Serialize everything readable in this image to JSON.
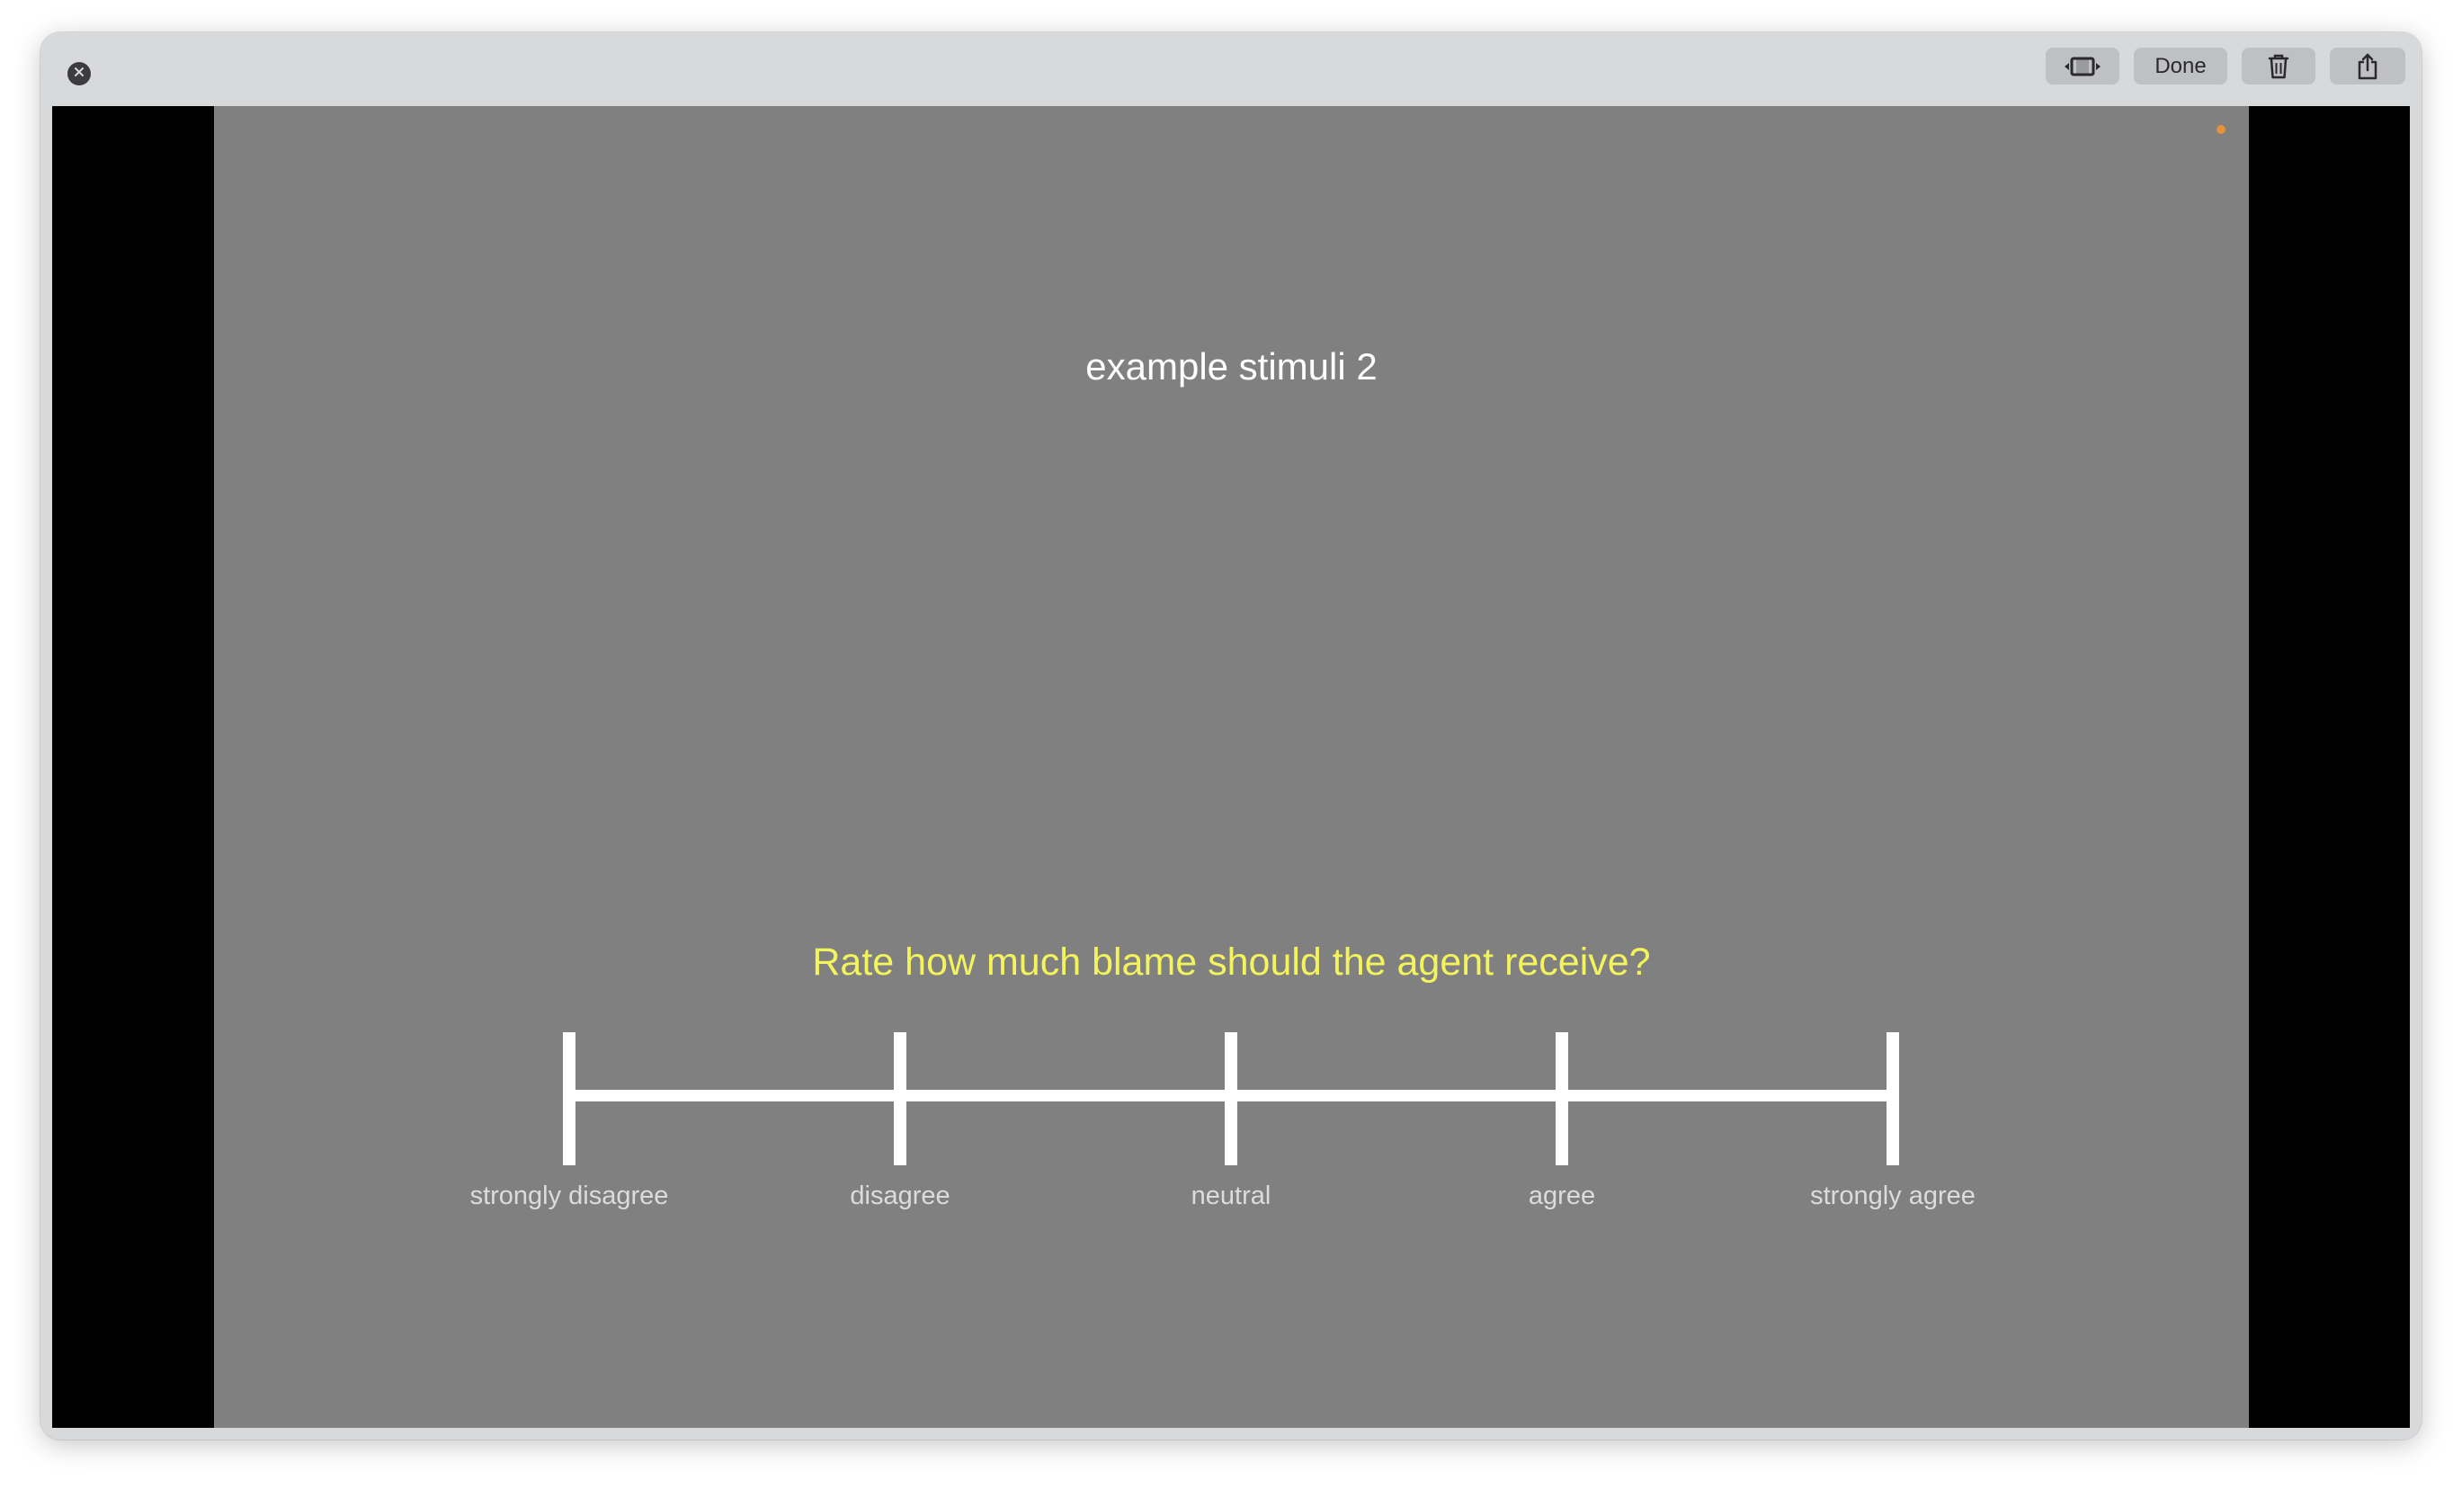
{
  "window": {
    "close_icon": "close-icon"
  },
  "toolbar": {
    "trim_icon": "trim-icon",
    "done_label": "Done",
    "trash_icon": "trash-icon",
    "share_icon": "share-icon"
  },
  "slide": {
    "title": "example stimuli 2",
    "question": "Rate how much blame should the agent receive?",
    "question_color": "#f3f45c",
    "background_color": "#808080",
    "recording_indicator_color": "#e8913a",
    "scale_labels": [
      "strongly disagree",
      "disagree",
      "neutral",
      "agree",
      "strongly agree"
    ]
  }
}
